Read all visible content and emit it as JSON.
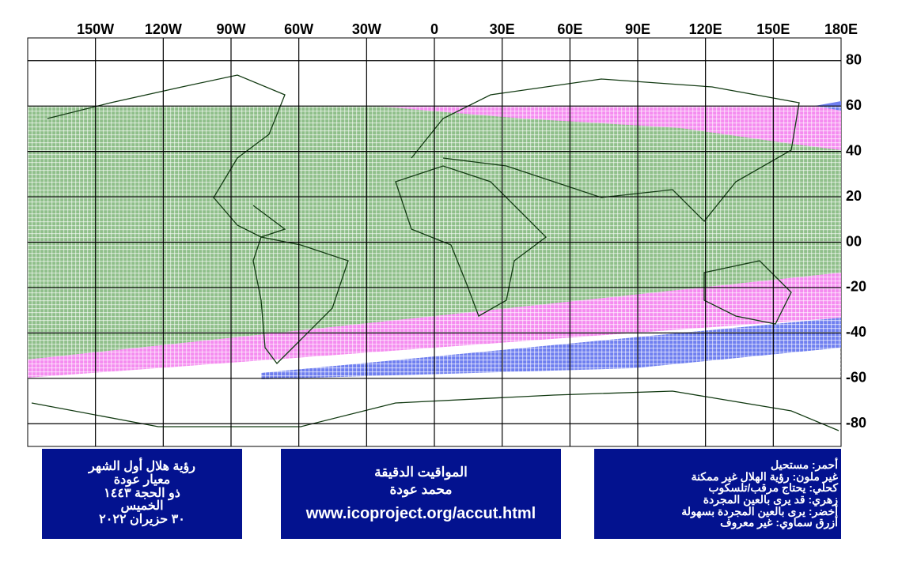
{
  "map": {
    "lon_labels": [
      "150W",
      "120W",
      "90W",
      "60W",
      "30W",
      "0",
      "30E",
      "60E",
      "90E",
      "120E",
      "150E",
      "180E"
    ],
    "lat_labels": [
      "80",
      "60",
      "40",
      "20",
      "00",
      "-20",
      "-40",
      "-60",
      "-80"
    ]
  },
  "boxes": [
    {
      "lines": [
        "رؤية هلال أول الشهر",
        "معيار عودة",
        "ذو الحجة ١٤٤٣",
        "الخميس",
        "٣٠ حزيران ٢٠٢٢"
      ]
    },
    {
      "lines": [
        "المواقيت الدقيقة",
        "محمد عودة",
        "www.icoproject.org/accut.html"
      ]
    },
    {
      "lines": [
        "أحمر: مستحيل",
        "غير ملون: رؤية الهلال غير ممكنة",
        "كحلي: يحتاج مرقب/تلسكوب",
        "زهري: قد يرى بالعين المجردة",
        "أخضر: يرى بالعين المجردة بسهولة",
        "أزرق سماوي: غير معروف"
      ]
    }
  ]
}
